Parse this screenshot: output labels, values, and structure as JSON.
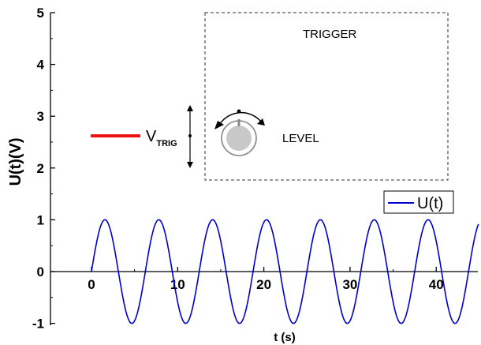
{
  "chart_data": {
    "type": "line",
    "xlabel": "t (s)",
    "ylabel": "U(t)(V)",
    "xlim": [
      -7.5,
      46.5
    ],
    "ylim": [
      -1.2,
      5
    ],
    "x_ticks": [
      0,
      10,
      20,
      30,
      40
    ],
    "y_ticks": [
      -1,
      0,
      1,
      2,
      3,
      4,
      5
    ],
    "grid": false,
    "legend": {
      "position": "right",
      "entries": [
        "U(t)"
      ]
    },
    "series": [
      {
        "name": "U(t)",
        "function": "sin(2*pi*t/6.25)",
        "amplitude": 1,
        "period": 6.25,
        "x_range": [
          0,
          45
        ],
        "color": "#0000cc"
      }
    ],
    "annotations": {
      "v_trig": {
        "label_main": "V",
        "label_sub": "TRIG",
        "level": 2.62,
        "color": "#ee1111"
      },
      "trigger_box_title": "TRIGGER",
      "knob_label": "LEVEL"
    }
  },
  "colors": {
    "series": "#0000cc",
    "trigger_line": "#ee1111",
    "knob_fill": "#c8c8c8",
    "knob_ring": "#888888"
  }
}
